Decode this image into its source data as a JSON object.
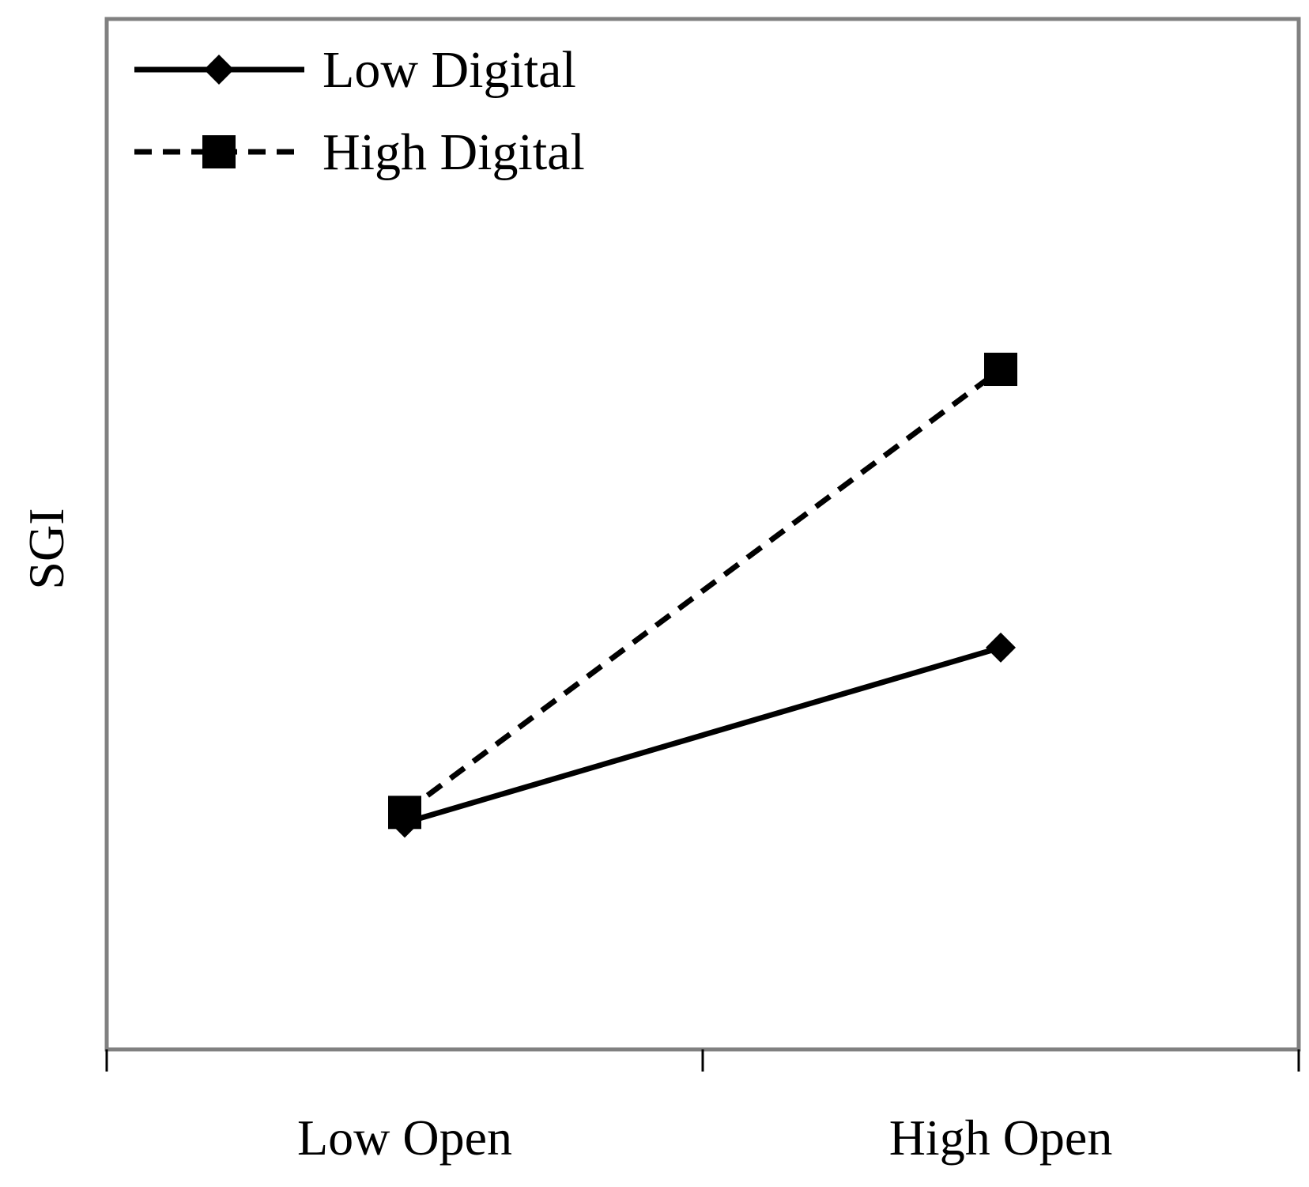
{
  "chart_data": {
    "type": "line",
    "title": "",
    "xlabel": "",
    "ylabel": "SGI",
    "categories": [
      "Low Open",
      "High Open"
    ],
    "ylim": [
      0,
      10
    ],
    "grid": false,
    "legend_position": "top-left",
    "series": [
      {
        "name": "Low Digital",
        "values": [
          2.2,
          3.9
        ],
        "marker": "diamond",
        "line_style": "solid",
        "color": "#000000"
      },
      {
        "name": "High Digital",
        "values": [
          2.3,
          6.6
        ],
        "marker": "square",
        "line_style": "dashed",
        "color": "#000000"
      }
    ]
  },
  "colors": {
    "axis": "#808080",
    "frame": "#808080",
    "ink": "#000000"
  }
}
